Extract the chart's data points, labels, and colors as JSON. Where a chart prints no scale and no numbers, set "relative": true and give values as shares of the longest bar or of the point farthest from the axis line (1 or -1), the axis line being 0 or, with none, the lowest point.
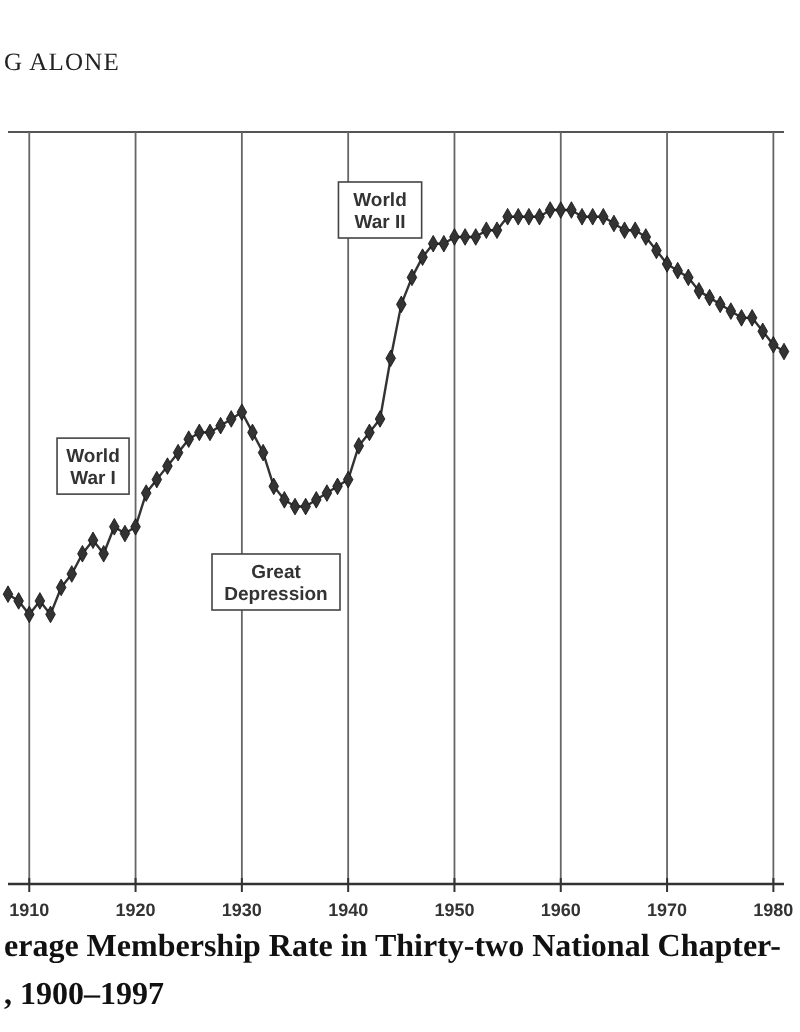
{
  "chart_data": {
    "type": "line",
    "title": "erage Membership Rate in Thirty-two National Chapter-\n, 1900–1997",
    "annotations": [
      "G ALONE",
      {
        "text": "World War I",
        "x": 1916,
        "y": 0.62
      },
      {
        "text": "World War II",
        "x": 1943,
        "y": 1.0
      },
      "Great Depression"
    ],
    "x": [
      1908,
      1909,
      1910,
      1911,
      1912,
      1913,
      1914,
      1915,
      1916,
      1917,
      1918,
      1919,
      1920,
      1921,
      1922,
      1923,
      1924,
      1925,
      1926,
      1927,
      1928,
      1929,
      1930,
      1931,
      1932,
      1933,
      1934,
      1935,
      1936,
      1937,
      1938,
      1939,
      1940,
      1941,
      1942,
      1943,
      1944,
      1945,
      1946,
      1947,
      1948,
      1949,
      1950,
      1951,
      1952,
      1953,
      1954,
      1955,
      1956,
      1957,
      1958,
      1959,
      1960,
      1961,
      1962,
      1963,
      1964,
      1965,
      1966,
      1967,
      1968,
      1969,
      1970,
      1971,
      1972,
      1973,
      1974,
      1975,
      1976,
      1977,
      1978,
      1979,
      1980,
      1981
    ],
    "values": [
      0.43,
      0.42,
      0.4,
      0.42,
      0.4,
      0.44,
      0.46,
      0.49,
      0.51,
      0.49,
      0.53,
      0.52,
      0.53,
      0.58,
      0.6,
      0.62,
      0.64,
      0.66,
      0.67,
      0.67,
      0.68,
      0.69,
      0.7,
      0.67,
      0.64,
      0.59,
      0.57,
      0.56,
      0.56,
      0.57,
      0.58,
      0.59,
      0.6,
      0.65,
      0.67,
      0.69,
      0.78,
      0.86,
      0.9,
      0.93,
      0.95,
      0.95,
      0.96,
      0.96,
      0.96,
      0.97,
      0.97,
      0.99,
      0.99,
      0.99,
      0.99,
      1.0,
      1.0,
      1.0,
      0.99,
      0.99,
      0.99,
      0.98,
      0.97,
      0.97,
      0.96,
      0.94,
      0.92,
      0.91,
      0.9,
      0.88,
      0.87,
      0.86,
      0.85,
      0.84,
      0.84,
      0.82,
      0.8,
      0.79
    ],
    "color": "#333333",
    "relative": true,
    "xlim": [
      1908,
      1981
    ],
    "xticks": [
      1910,
      1920,
      1930,
      1940,
      1950,
      1960,
      1970,
      1980
    ],
    "grid": "x",
    "marker": "diamond",
    "line_style": "solid"
  }
}
